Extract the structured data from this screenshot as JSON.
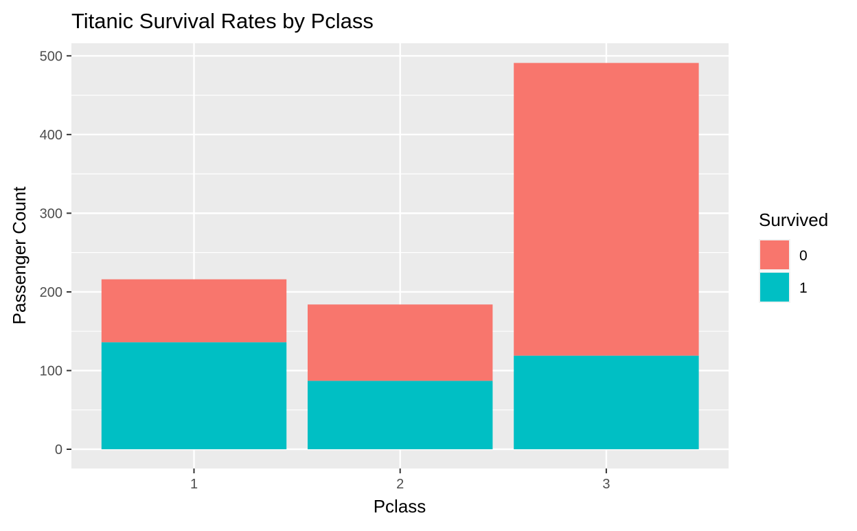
{
  "chart_data": {
    "type": "bar",
    "stacked": true,
    "title": "Titanic Survival Rates by Pclass",
    "xlabel": "Pclass",
    "ylabel": "Passenger Count",
    "categories": [
      "1",
      "2",
      "3"
    ],
    "ylim": [
      0,
      500
    ],
    "yticks": [
      0,
      100,
      200,
      300,
      400,
      500
    ],
    "grid": true,
    "legend": {
      "title": "Survived",
      "position": "right"
    },
    "series": [
      {
        "name": "0",
        "values": [
          80,
          97,
          372
        ],
        "color": "#F8766D"
      },
      {
        "name": "1",
        "values": [
          136,
          87,
          119
        ],
        "color": "#00BFC4"
      }
    ]
  }
}
